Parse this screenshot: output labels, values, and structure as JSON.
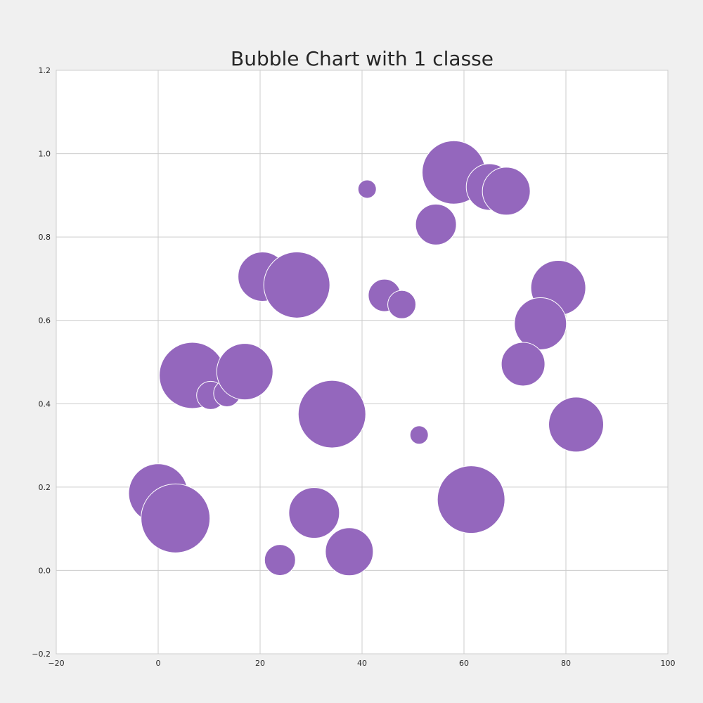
{
  "chart_data": {
    "type": "scatter",
    "title": "Bubble Chart with 1 classe",
    "xlabel": "",
    "ylabel": "",
    "xlim": [
      -20,
      100
    ],
    "ylim": [
      -0.2,
      1.2
    ],
    "x_ticks": [
      -20,
      0,
      20,
      40,
      60,
      80,
      100
    ],
    "x_tick_labels": [
      "−20",
      "0",
      "20",
      "40",
      "60",
      "80",
      "100"
    ],
    "y_ticks": [
      -0.2,
      0.0,
      0.2,
      0.4,
      0.6,
      0.8,
      1.0,
      1.2
    ],
    "y_tick_labels": [
      "−0.2",
      "0.0",
      "0.2",
      "0.4",
      "0.6",
      "0.8",
      "1.0",
      "1.2"
    ],
    "grid": true,
    "legend": "none",
    "colors": {
      "bubble": "#9467bd",
      "bubble_edge": "#ffffff",
      "grid": "#cccccc",
      "plot_background": "#ffffff",
      "figure_background": "#f0f0f0"
    },
    "series": [
      {
        "points": [
          {
            "x": 41.0,
            "y": 0.915,
            "size": 13
          },
          {
            "x": 58.0,
            "y": 0.955,
            "size": 45
          },
          {
            "x": 65.0,
            "y": 0.92,
            "size": 33
          },
          {
            "x": 68.3,
            "y": 0.91,
            "size": 34
          },
          {
            "x": 54.5,
            "y": 0.83,
            "size": 29
          },
          {
            "x": 20.5,
            "y": 0.705,
            "size": 35
          },
          {
            "x": 27.2,
            "y": 0.685,
            "size": 47
          },
          {
            "x": 44.4,
            "y": 0.66,
            "size": 23
          },
          {
            "x": 47.8,
            "y": 0.638,
            "size": 20
          },
          {
            "x": 78.5,
            "y": 0.678,
            "size": 39
          },
          {
            "x": 75.0,
            "y": 0.592,
            "size": 37
          },
          {
            "x": 71.6,
            "y": 0.495,
            "size": 31
          },
          {
            "x": 6.7,
            "y": 0.468,
            "size": 47
          },
          {
            "x": 10.3,
            "y": 0.42,
            "size": 20
          },
          {
            "x": 13.5,
            "y": 0.425,
            "size": 19
          },
          {
            "x": 17.0,
            "y": 0.477,
            "size": 40
          },
          {
            "x": 34.1,
            "y": 0.375,
            "size": 48
          },
          {
            "x": 51.2,
            "y": 0.325,
            "size": 13
          },
          {
            "x": 82.0,
            "y": 0.35,
            "size": 39
          },
          {
            "x": 0.0,
            "y": 0.185,
            "size": 42
          },
          {
            "x": 3.4,
            "y": 0.125,
            "size": 49
          },
          {
            "x": 30.6,
            "y": 0.138,
            "size": 36
          },
          {
            "x": 61.4,
            "y": 0.17,
            "size": 48
          },
          {
            "x": 23.9,
            "y": 0.025,
            "size": 22
          },
          {
            "x": 37.5,
            "y": 0.045,
            "size": 34
          }
        ]
      }
    ]
  }
}
